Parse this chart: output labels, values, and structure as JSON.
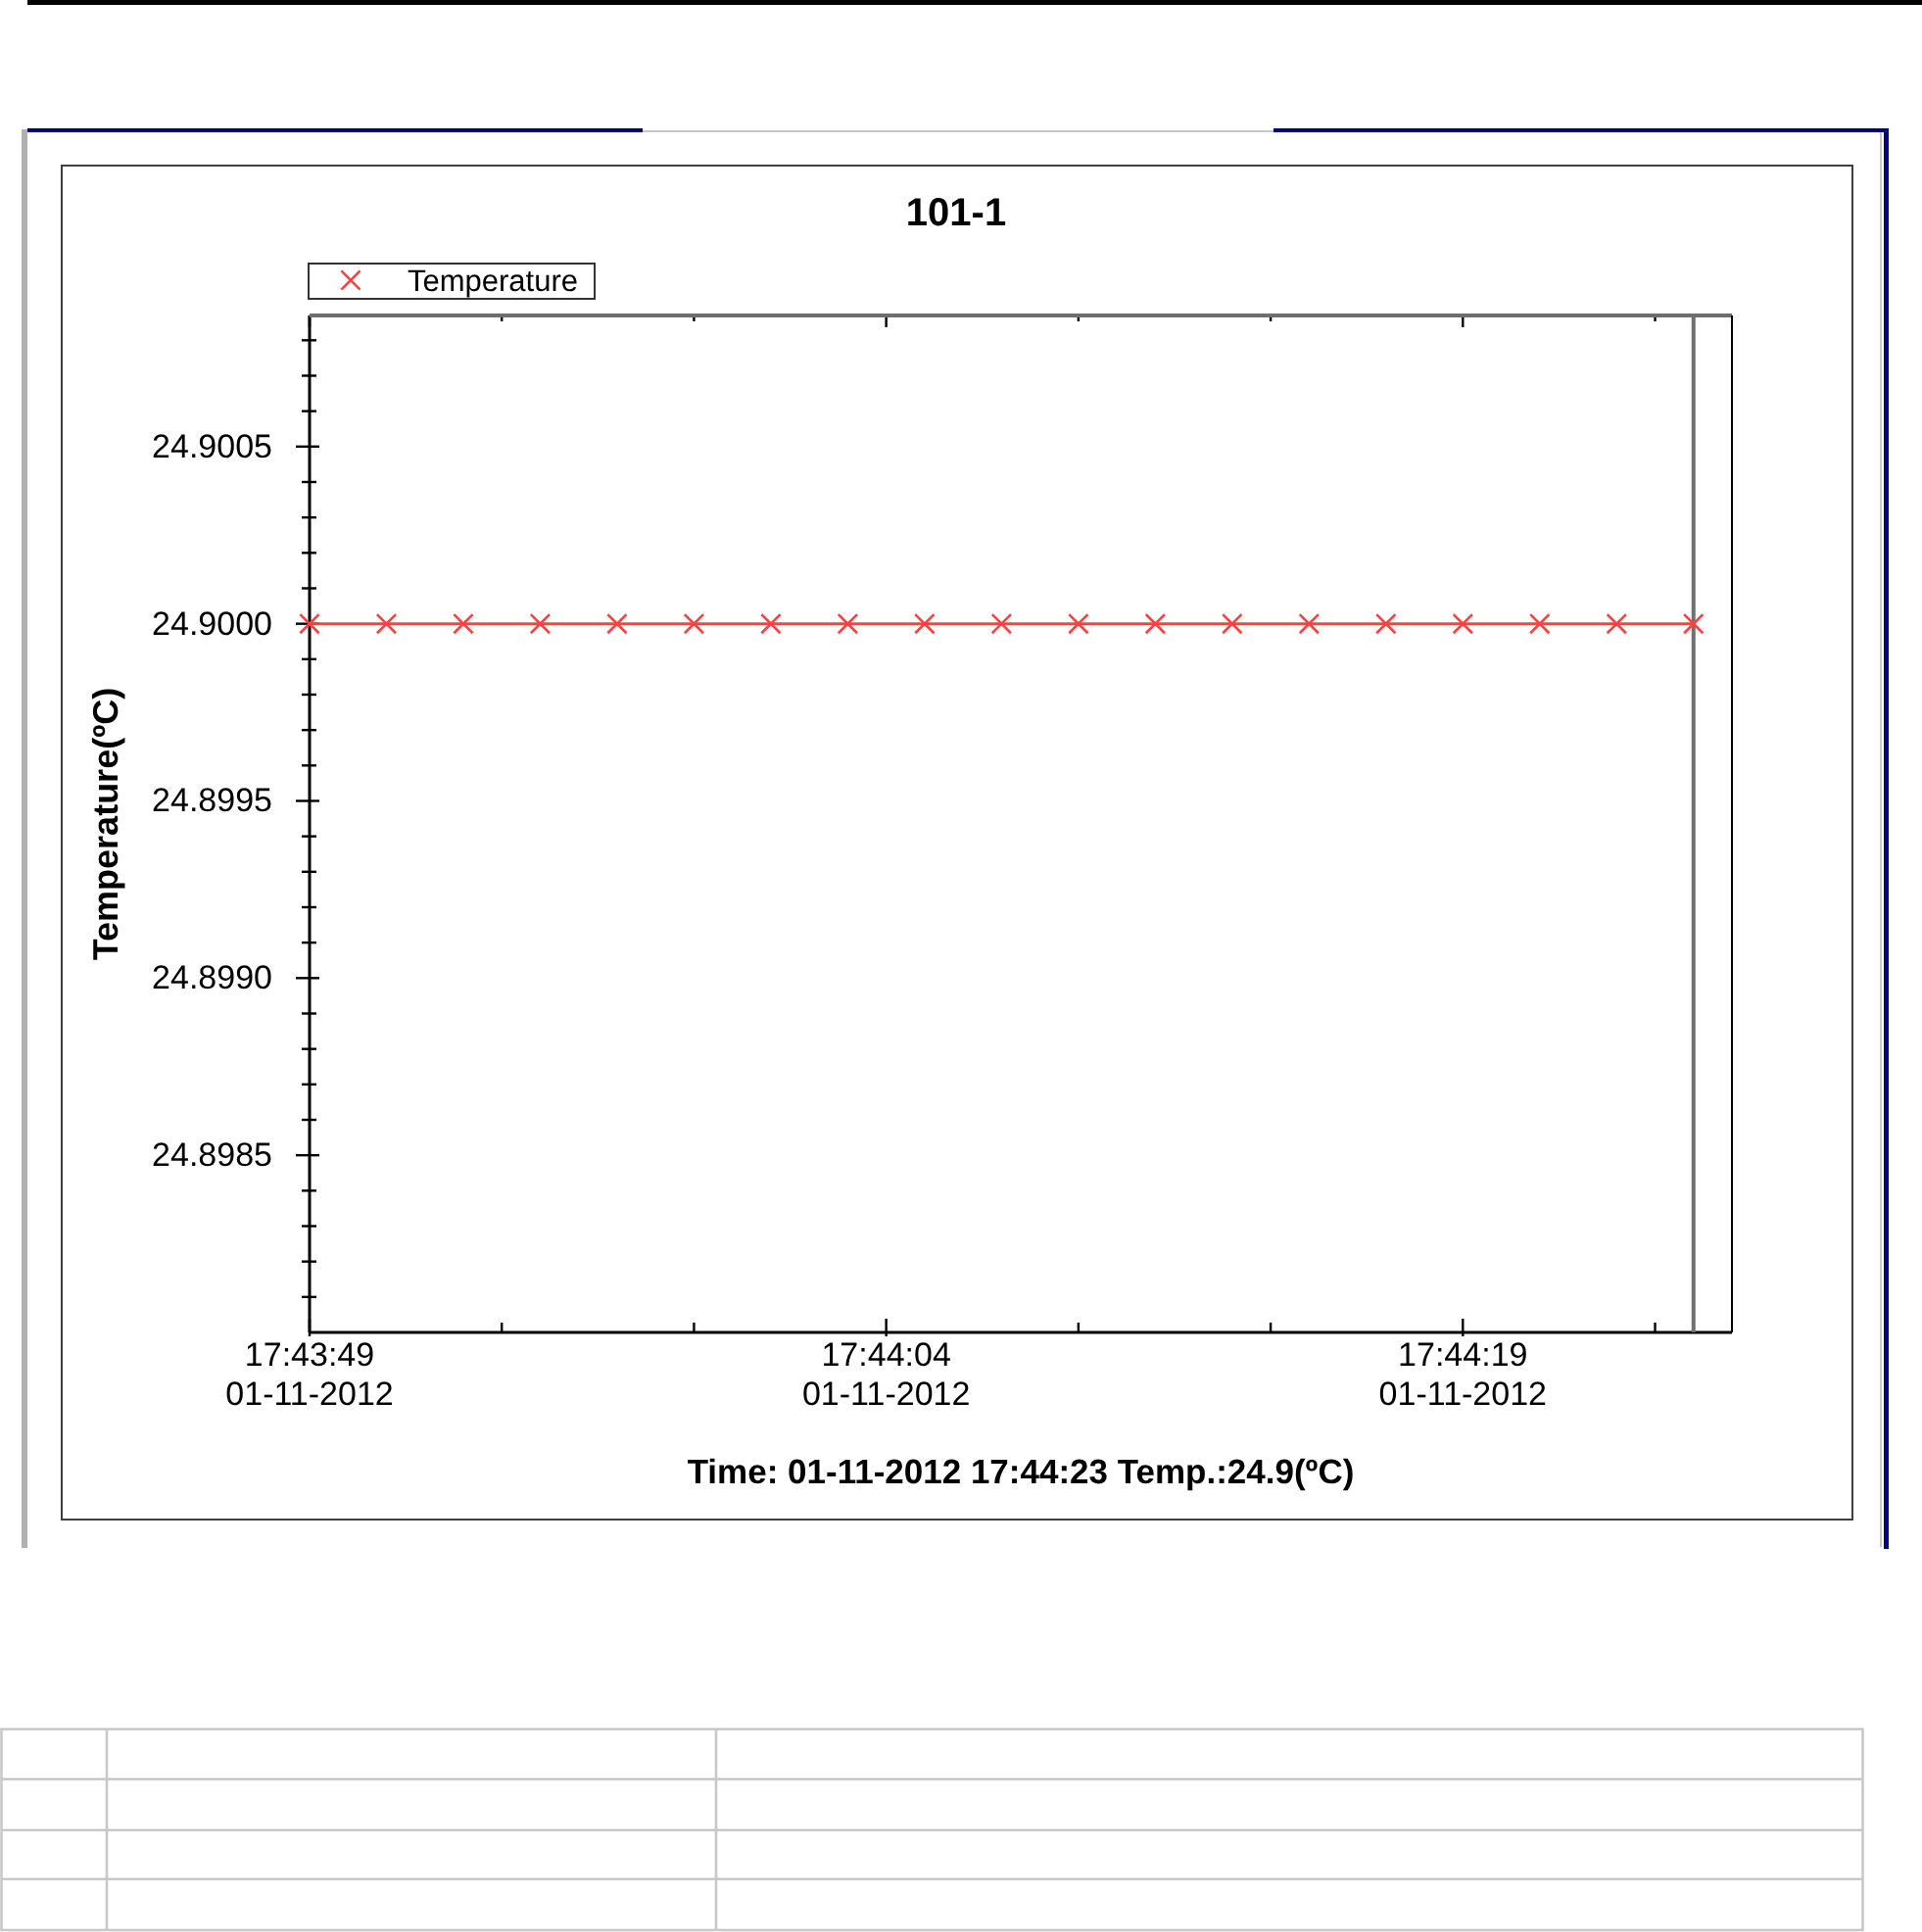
{
  "chart_data": {
    "type": "line",
    "title": "101-1",
    "xlabel": "Time: 01-11-2012 17:44:23 Temp.:24.9(ºC)",
    "ylabel": "Temperature(ºC)",
    "x": [
      "2012-11-01T17:43:49",
      "2012-11-01T17:43:51",
      "2012-11-01T17:43:53",
      "2012-11-01T17:43:55",
      "2012-11-01T17:43:57",
      "2012-11-01T17:43:59",
      "2012-11-01T17:44:01",
      "2012-11-01T17:44:03",
      "2012-11-01T17:44:05",
      "2012-11-01T17:44:07",
      "2012-11-01T17:44:09",
      "2012-11-01T17:44:11",
      "2012-11-01T17:44:13",
      "2012-11-01T17:44:15",
      "2012-11-01T17:44:17",
      "2012-11-01T17:44:19",
      "2012-11-01T17:44:21",
      "2012-11-01T17:44:23",
      "2012-11-01T17:44:25"
    ],
    "series": [
      {
        "name": "Temperature",
        "color": "#ff4040",
        "values": [
          24.9,
          24.9,
          24.9,
          24.9,
          24.9,
          24.9,
          24.9,
          24.9,
          24.9,
          24.9,
          24.9,
          24.9,
          24.9,
          24.9,
          24.9,
          24.9,
          24.9,
          24.9,
          24.9
        ]
      }
    ],
    "xlim": [
      "2012-11-01T17:43:49",
      "2012-11-01T17:44:26"
    ],
    "xticks": [
      {
        "value": "2012-11-01T17:43:49",
        "label": "17:43:49\n01-11-2012"
      },
      {
        "value": "2012-11-01T17:43:54",
        "label": null
      },
      {
        "value": "2012-11-01T17:43:59",
        "label": null
      },
      {
        "value": "2012-11-01T17:44:04",
        "label": "17:44:04\n01-11-2012"
      },
      {
        "value": "2012-11-01T17:44:09",
        "label": null
      },
      {
        "value": "2012-11-01T17:44:14",
        "label": null
      },
      {
        "value": "2012-11-01T17:44:19",
        "label": "17:44:19\n01-11-2012"
      },
      {
        "value": "2012-11-01T17:44:24",
        "label": null
      }
    ],
    "ylim": [
      24.898,
      24.90087
    ],
    "yticks": [
      {
        "value": 24.8981,
        "label": null
      },
      {
        "value": 24.8982,
        "label": null
      },
      {
        "value": 24.8983,
        "label": null
      },
      {
        "value": 24.8984,
        "label": null
      },
      24.8985,
      {
        "value": 24.8986,
        "label": null
      },
      {
        "value": 24.8987,
        "label": null
      },
      {
        "value": 24.8988,
        "label": null
      },
      {
        "value": 24.8989,
        "label": null
      },
      {
        "value": 24.899,
        "label": "24.8990"
      },
      {
        "value": 24.8991,
        "label": null
      },
      {
        "value": 24.8992,
        "label": null
      },
      {
        "value": 24.8993,
        "label": null
      },
      {
        "value": 24.8994,
        "label": null
      },
      24.8995,
      {
        "value": 24.8996,
        "label": null
      },
      {
        "value": 24.8997,
        "label": null
      },
      {
        "value": 24.8998,
        "label": null
      },
      {
        "value": 24.8999,
        "label": null
      },
      {
        "value": 24.9,
        "label": "24.9000"
      },
      {
        "value": 24.9001,
        "label": null
      },
      {
        "value": 24.9002,
        "label": null
      },
      {
        "value": 24.9003,
        "label": null
      },
      {
        "value": 24.9004,
        "label": null
      },
      24.9005,
      {
        "value": 24.9006,
        "label": null
      },
      {
        "value": 24.9007,
        "label": null
      },
      {
        "value": 24.9008,
        "label": null
      }
    ],
    "marker": "cross",
    "legend": "top left",
    "ref_lines": [
      {
        "axis": "x",
        "value": "2012-11-01T17:44:25",
        "color": "#707070"
      }
    ]
  }
}
